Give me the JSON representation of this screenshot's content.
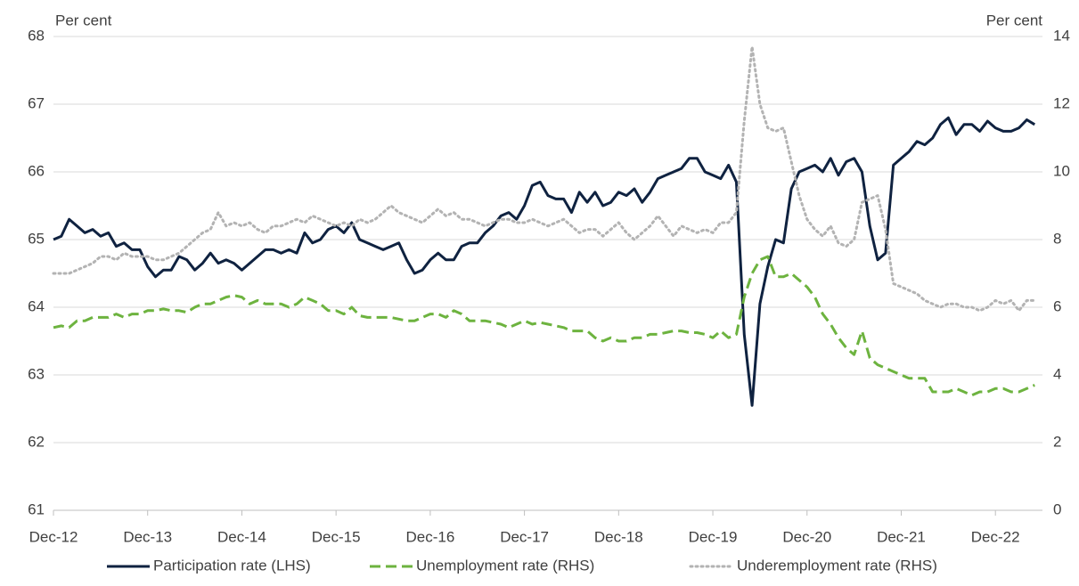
{
  "chart_data": {
    "type": "line",
    "y_label": "Per cent",
    "y2_label": "Per cent",
    "categories": [
      "Dec-12",
      null,
      null,
      null,
      null,
      null,
      null,
      null,
      null,
      null,
      null,
      null,
      "Dec-13",
      null,
      null,
      null,
      null,
      null,
      null,
      null,
      null,
      null,
      null,
      null,
      "Dec-14",
      null,
      null,
      null,
      null,
      null,
      null,
      null,
      null,
      null,
      null,
      null,
      "Dec-15",
      null,
      null,
      null,
      null,
      null,
      null,
      null,
      null,
      null,
      null,
      null,
      "Dec-16",
      null,
      null,
      null,
      null,
      null,
      null,
      null,
      null,
      null,
      null,
      null,
      "Dec-17",
      null,
      null,
      null,
      null,
      null,
      null,
      null,
      null,
      null,
      null,
      null,
      "Dec-18",
      null,
      null,
      null,
      null,
      null,
      null,
      null,
      null,
      null,
      null,
      null,
      "Dec-19",
      null,
      null,
      null,
      null,
      null,
      null,
      null,
      null,
      null,
      null,
      null,
      "Dec-20",
      null,
      null,
      null,
      null,
      null,
      null,
      null,
      null,
      null,
      null,
      null,
      "Dec-21",
      null,
      null,
      null,
      null,
      null,
      null,
      null,
      null,
      null,
      null,
      null,
      "Dec-22",
      null,
      null,
      null,
      null,
      null
    ],
    "series": [
      {
        "name": "Participation rate (LHS)",
        "color": "#0f2240",
        "style": "solid",
        "axis": "y",
        "values": [
          65.0,
          65.05,
          65.3,
          65.2,
          65.1,
          65.15,
          65.05,
          65.1,
          64.9,
          64.95,
          64.85,
          64.85,
          64.6,
          64.45,
          64.55,
          64.55,
          64.75,
          64.7,
          64.55,
          64.65,
          64.8,
          64.65,
          64.7,
          64.65,
          64.55,
          64.65,
          64.75,
          64.85,
          64.85,
          64.8,
          64.85,
          64.8,
          65.1,
          64.95,
          65.0,
          65.15,
          65.2,
          65.1,
          65.25,
          65.0,
          64.95,
          64.9,
          64.85,
          64.9,
          64.95,
          64.7,
          64.5,
          64.55,
          64.7,
          64.8,
          64.7,
          64.7,
          64.9,
          64.95,
          64.95,
          65.1,
          65.2,
          65.35,
          65.4,
          65.3,
          65.5,
          65.8,
          65.85,
          65.65,
          65.6,
          65.6,
          65.4,
          65.7,
          65.55,
          65.7,
          65.5,
          65.55,
          65.7,
          65.65,
          65.75,
          65.55,
          65.7,
          65.9,
          65.95,
          66.0,
          66.05,
          66.2,
          66.2,
          66.0,
          65.95,
          65.9,
          66.1,
          65.85,
          63.6,
          62.55,
          64.05,
          64.6,
          65.0,
          64.95,
          65.75,
          66.0,
          66.05,
          66.1,
          66.0,
          66.2,
          65.95,
          66.15,
          66.2,
          66.0,
          65.2,
          64.7,
          64.8,
          66.1,
          66.2,
          66.3,
          66.45,
          66.4,
          66.5,
          66.7,
          66.8,
          66.55,
          66.7,
          66.7,
          66.6,
          66.75,
          66.65,
          66.6,
          66.6,
          66.65,
          66.77,
          66.7
        ]
      },
      {
        "name": "Unemployment rate (RHS)",
        "color": "#6db33f",
        "style": "dashed",
        "axis": "y2",
        "values": [
          5.4,
          5.45,
          5.4,
          5.6,
          5.6,
          5.7,
          5.7,
          5.7,
          5.8,
          5.7,
          5.8,
          5.8,
          5.9,
          5.9,
          5.95,
          5.9,
          5.9,
          5.85,
          6.0,
          6.1,
          6.1,
          6.2,
          6.3,
          6.35,
          6.3,
          6.1,
          6.2,
          6.1,
          6.1,
          6.1,
          6.0,
          6.1,
          6.3,
          6.2,
          6.1,
          5.9,
          5.9,
          5.8,
          6.0,
          5.75,
          5.7,
          5.7,
          5.7,
          5.7,
          5.65,
          5.6,
          5.6,
          5.7,
          5.8,
          5.8,
          5.7,
          5.9,
          5.8,
          5.6,
          5.6,
          5.6,
          5.55,
          5.5,
          5.4,
          5.5,
          5.6,
          5.5,
          5.55,
          5.5,
          5.45,
          5.4,
          5.3,
          5.3,
          5.3,
          5.1,
          5.0,
          5.1,
          5.0,
          5.0,
          5.1,
          5.1,
          5.2,
          5.2,
          5.25,
          5.3,
          5.3,
          5.25,
          5.25,
          5.2,
          5.1,
          5.3,
          5.1,
          5.2,
          6.3,
          7.0,
          7.4,
          7.5,
          6.9,
          6.9,
          7.0,
          6.8,
          6.6,
          6.3,
          5.8,
          5.5,
          5.1,
          4.8,
          4.6,
          5.3,
          4.5,
          4.3,
          4.2,
          4.1,
          4.0,
          3.9,
          3.9,
          3.9,
          3.5,
          3.5,
          3.5,
          3.6,
          3.5,
          3.4,
          3.5,
          3.5,
          3.6,
          3.6,
          3.5,
          3.5,
          3.6,
          3.7
        ]
      },
      {
        "name": "Underemployment rate (RHS)",
        "color": "#b3b3b3",
        "style": "dotted",
        "axis": "y2",
        "values": [
          7.0,
          7.0,
          7.0,
          7.1,
          7.2,
          7.3,
          7.5,
          7.5,
          7.4,
          7.6,
          7.5,
          7.5,
          7.5,
          7.4,
          7.4,
          7.5,
          7.6,
          7.8,
          8.0,
          8.2,
          8.3,
          8.8,
          8.4,
          8.5,
          8.4,
          8.5,
          8.3,
          8.2,
          8.4,
          8.4,
          8.5,
          8.6,
          8.5,
          8.7,
          8.6,
          8.5,
          8.4,
          8.5,
          8.4,
          8.6,
          8.5,
          8.6,
          8.8,
          9.0,
          8.8,
          8.7,
          8.6,
          8.5,
          8.7,
          8.9,
          8.7,
          8.8,
          8.6,
          8.6,
          8.5,
          8.4,
          8.5,
          8.6,
          8.6,
          8.5,
          8.5,
          8.6,
          8.5,
          8.4,
          8.5,
          8.6,
          8.4,
          8.2,
          8.3,
          8.3,
          8.1,
          8.3,
          8.5,
          8.2,
          8.0,
          8.2,
          8.4,
          8.7,
          8.4,
          8.1,
          8.4,
          8.3,
          8.2,
          8.3,
          8.2,
          8.5,
          8.5,
          8.8,
          11.5,
          13.7,
          12.0,
          11.3,
          11.2,
          11.3,
          10.3,
          9.3,
          8.6,
          8.3,
          8.1,
          8.4,
          7.9,
          7.8,
          8.0,
          9.1,
          9.2,
          9.3,
          8.3,
          6.7,
          6.6,
          6.5,
          6.4,
          6.2,
          6.1,
          6.0,
          6.1,
          6.1,
          6.0,
          6.0,
          5.9,
          6.0,
          6.2,
          6.1,
          6.2,
          5.9,
          6.2,
          6.2
        ]
      }
    ],
    "ylim": [
      61,
      68
    ],
    "yticks": [
      61,
      62,
      63,
      64,
      65,
      66,
      67,
      68
    ],
    "y2lim": [
      0,
      14
    ],
    "y2ticks": [
      0,
      2,
      4,
      6,
      8,
      10,
      12,
      14
    ],
    "grid": true,
    "legend": "bottom"
  }
}
